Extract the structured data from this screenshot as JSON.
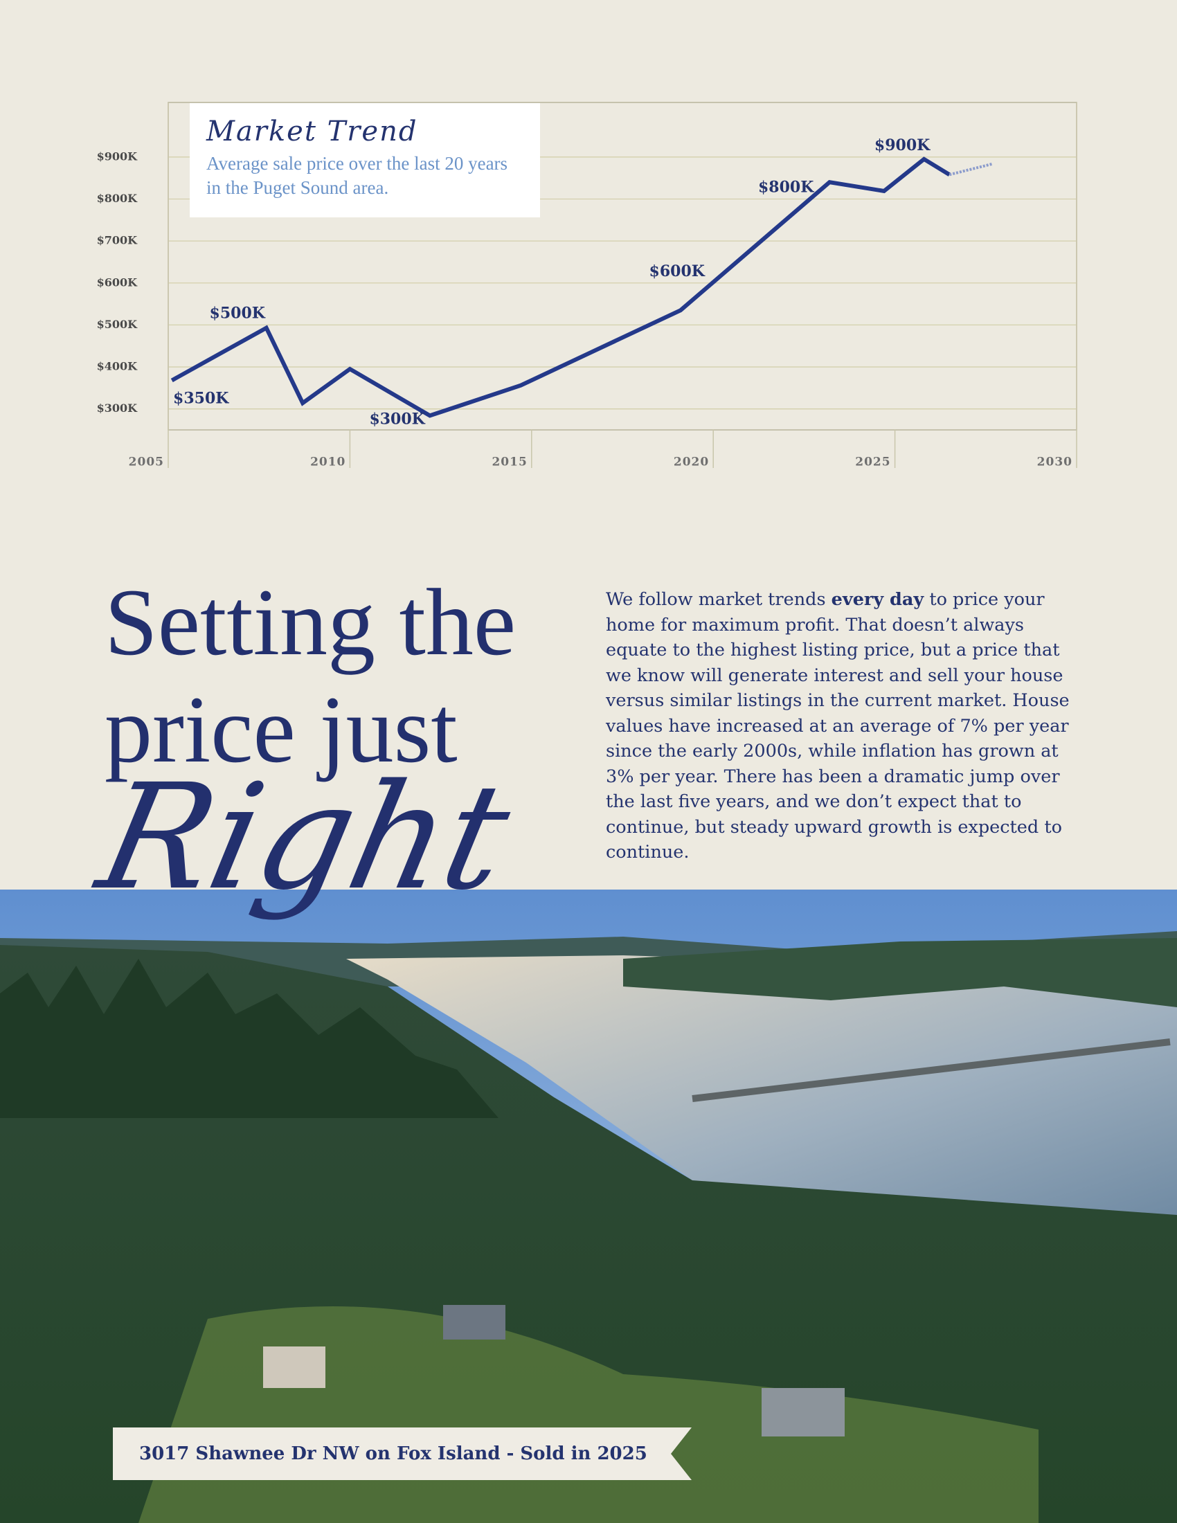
{
  "chart_data": {
    "type": "line",
    "title": "Market Trend",
    "subtitle": "Average sale price over the last 20 years in the Puget Sound area.",
    "x": [
      2005.1,
      2007.7,
      2008.7,
      2010,
      2012.2,
      2014.7,
      2019.1,
      2023.2,
      2024.7,
      2025.8,
      2026.5,
      2027.7
    ],
    "series": [
      {
        "color": "#24398a",
        "values": [
          368000,
          493000,
          314000,
          395000,
          284000,
          356000,
          535000,
          840000,
          819000,
          895000,
          858000,
          null
        ]
      },
      {
        "color": "#8c9ccc",
        "dashed": true,
        "values": [
          null,
          null,
          null,
          null,
          null,
          null,
          null,
          null,
          null,
          null,
          858000,
          884000
        ]
      }
    ],
    "xlim": [
      2005,
      2030
    ],
    "xticks": [
      2005,
      2010,
      2015,
      2020,
      2025,
      2030
    ],
    "ylim": [
      250000,
      1030000
    ],
    "yticks": [
      {
        "value": 300000,
        "label": "$300K"
      },
      {
        "value": 400000,
        "label": "$400K"
      },
      {
        "value": 500000,
        "label": "$500K"
      },
      {
        "value": 600000,
        "label": "$600K"
      },
      {
        "value": 700000,
        "label": "$700K"
      },
      {
        "value": 800000,
        "label": "$800K"
      },
      {
        "value": 900000,
        "label": "$900K"
      }
    ],
    "grid": true,
    "annotations": [
      {
        "label": "$350K",
        "value": 350000,
        "x": 2005.9,
        "position": "below"
      },
      {
        "label": "$500K",
        "value": 500000,
        "x": 2006.9,
        "position": "above"
      },
      {
        "label": "$300K",
        "value": 300000,
        "x": 2011.3,
        "position": "below"
      },
      {
        "label": "$600K",
        "value": 600000,
        "x": 2019.0,
        "position": "above"
      },
      {
        "label": "$800K",
        "value": 800000,
        "x": 2022.0,
        "position": "above"
      },
      {
        "label": "$900K",
        "value": 900000,
        "x": 2025.2,
        "position": "above"
      }
    ]
  },
  "headline": {
    "line1": "Setting the",
    "line2": "price just",
    "script": "Right"
  },
  "body": {
    "before": "We follow market trends ",
    "emphasis": "every day",
    "after": " to price your home for maximum profit. That doesn’t always equate to the highest listing price, but a price that we know will generate interest and sell your house versus similar listings in the current market. House values have increased at an average of 7% per year since the early 2000s, while inflation has grown at 3% per year. There has been a dramatic jump over the last five years, and we don’t expect that to continue, but steady upward growth is expected to continue."
  },
  "photo": {
    "caption": "3017 Shawnee Dr NW on Fox Island - Sold in 2025"
  }
}
